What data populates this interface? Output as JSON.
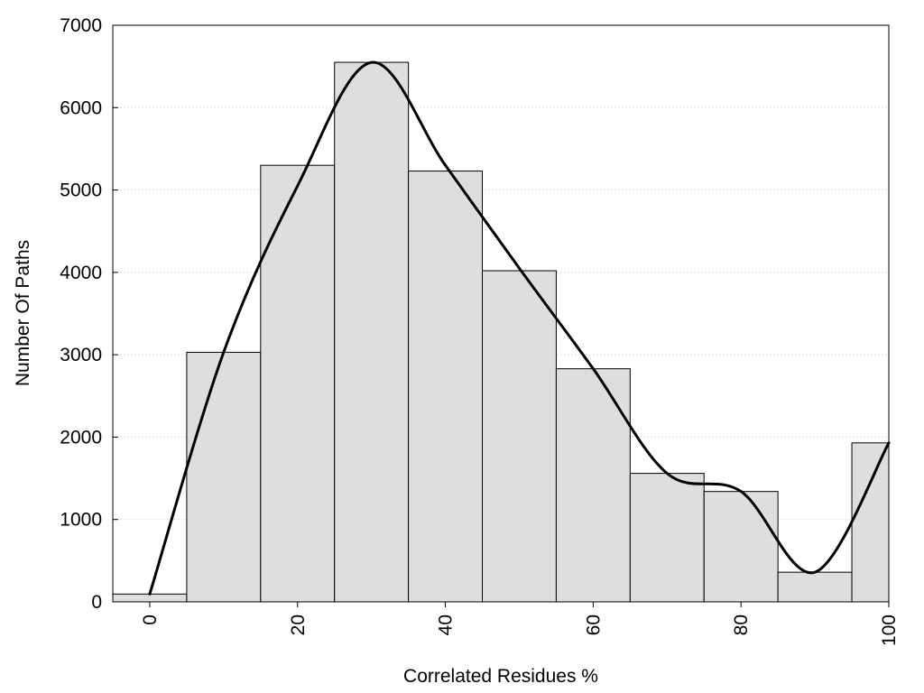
{
  "chart_data": {
    "type": "bar",
    "subtype": "histogram with smoothed curve",
    "title": "",
    "xlabel": "Correlated Residues %",
    "ylabel": "Number Of Paths",
    "xlim": [
      -5,
      100
    ],
    "ylim": [
      0,
      7000
    ],
    "x_ticks": [
      0,
      20,
      40,
      60,
      80,
      100
    ],
    "y_ticks": [
      0,
      1000,
      2000,
      3000,
      4000,
      5000,
      6000,
      7000
    ],
    "x_tick_labels": [
      "0",
      "20",
      "40",
      "60",
      "80",
      "100"
    ],
    "y_tick_labels": [
      "0",
      "1000",
      "2000",
      "3000",
      "4000",
      "5000",
      "6000",
      "7000"
    ],
    "bin_width": 10,
    "bins": [
      {
        "center": 0,
        "value": 95
      },
      {
        "center": 10,
        "value": 3030
      },
      {
        "center": 20,
        "value": 5300
      },
      {
        "center": 30,
        "value": 6550
      },
      {
        "center": 40,
        "value": 5230
      },
      {
        "center": 50,
        "value": 4020
      },
      {
        "center": 60,
        "value": 2830
      },
      {
        "center": 70,
        "value": 1560
      },
      {
        "center": 80,
        "value": 1340
      },
      {
        "center": 90,
        "value": 360
      },
      {
        "center": 100,
        "value": 1930
      }
    ],
    "curve": {
      "x": [
        0,
        10,
        20,
        30,
        40,
        50,
        60,
        70,
        80,
        90,
        100
      ],
      "y": [
        95,
        3030,
        5050,
        6550,
        5300,
        4050,
        2830,
        1560,
        1340,
        360,
        1930
      ]
    },
    "grid": {
      "y": true,
      "x": false,
      "style": "dotted"
    },
    "colors": {
      "bar_fill": "#dedede",
      "bar_stroke": "#000000",
      "curve": "#000000",
      "grid": "#c8c8c8",
      "frame": "#000000"
    }
  }
}
